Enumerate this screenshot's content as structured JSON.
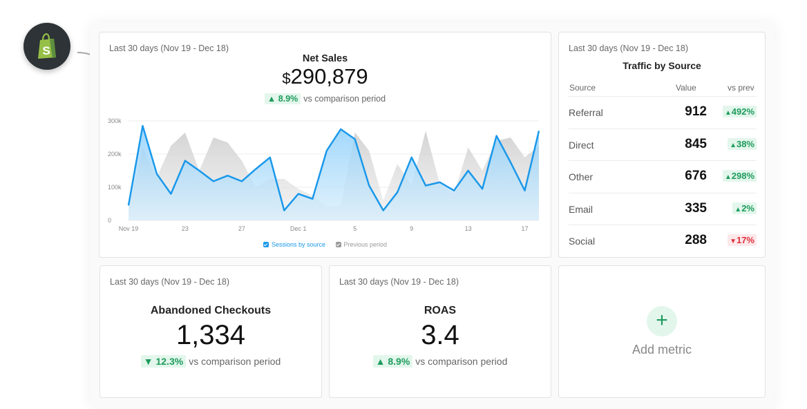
{
  "period_label": "Last 30 days (Nov 19 - Dec 18)",
  "net_sales": {
    "title": "Net Sales",
    "currency": "$",
    "value": "290,879",
    "delta": "8.9%",
    "delta_direction": "up",
    "comparison_text": "vs comparison period"
  },
  "chart_data": {
    "type": "area",
    "x_tick_labels": [
      "Nov 19",
      "23",
      "27",
      "Dec 1",
      "5",
      "9",
      "13",
      "17"
    ],
    "y_tick_labels": [
      "0",
      "100k",
      "200k",
      "300k"
    ],
    "ylim": [
      0,
      300000
    ],
    "grid": true,
    "legend_position": "bottom",
    "x": [
      1,
      2,
      3,
      4,
      5,
      6,
      7,
      8,
      9,
      10,
      11,
      12,
      13,
      14,
      15,
      16,
      17,
      18,
      19,
      20,
      21,
      22,
      23,
      24,
      25,
      26,
      27,
      28,
      29,
      30
    ],
    "series": [
      {
        "name": "Sessions by source",
        "color": "#1a98ea",
        "values": [
          45000,
          285000,
          140000,
          80000,
          180000,
          150000,
          118000,
          135000,
          118000,
          155000,
          190000,
          30000,
          80000,
          65000,
          210000,
          275000,
          245000,
          105000,
          30000,
          85000,
          190000,
          105000,
          115000,
          90000,
          150000,
          95000,
          255000,
          175000,
          90000,
          270000
        ]
      },
      {
        "name": "Previous period",
        "color": "#d4d4d4",
        "values": [
          30000,
          220000,
          130000,
          225000,
          265000,
          150000,
          250000,
          235000,
          180000,
          100000,
          125000,
          125000,
          95000,
          75000,
          40000,
          45000,
          265000,
          210000,
          60000,
          170000,
          105000,
          270000,
          110000,
          80000,
          220000,
          150000,
          240000,
          250000,
          190000,
          225000
        ]
      }
    ]
  },
  "traffic": {
    "title": "Traffic by Source",
    "col_source": "Source",
    "col_value": "Value",
    "col_vs": "vs prev",
    "rows": [
      {
        "source": "Referral",
        "value": "912",
        "change": "492%",
        "direction": "up"
      },
      {
        "source": "Direct",
        "value": "845",
        "change": "38%",
        "direction": "up"
      },
      {
        "source": "Other",
        "value": "676",
        "change": "298%",
        "direction": "up"
      },
      {
        "source": "Email",
        "value": "335",
        "change": "2%",
        "direction": "up"
      },
      {
        "source": "Social",
        "value": "288",
        "change": "17%",
        "direction": "down"
      }
    ]
  },
  "abandoned": {
    "title": "Abandoned Checkouts",
    "value": "1,334",
    "delta": "12.3%",
    "delta_direction": "down",
    "comparison_text": "vs comparison period"
  },
  "roas": {
    "title": "ROAS",
    "value": "3.4",
    "delta": "8.9%",
    "delta_direction": "up",
    "comparison_text": "vs comparison period"
  },
  "add_metric": {
    "label": "Add metric",
    "icon": "plus-icon"
  },
  "brand": {
    "icon": "shopify-logo-icon",
    "green": "#1e9b5c",
    "red": "#e0303f",
    "blue": "#1a98ea"
  }
}
